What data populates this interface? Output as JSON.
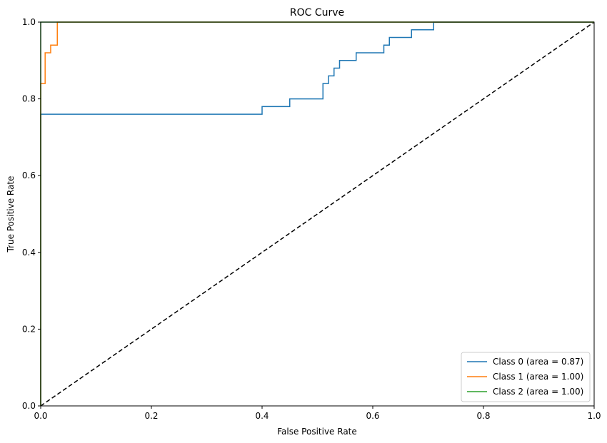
{
  "chart_data": {
    "type": "line",
    "title": "ROC Curve",
    "xlabel": "False Positive Rate",
    "ylabel": "True Positive Rate",
    "xlim": [
      0.0,
      1.0
    ],
    "ylim": [
      0.0,
      1.0
    ],
    "xticks": [
      "0.0",
      "0.2",
      "0.4",
      "0.6",
      "0.8",
      "1.0"
    ],
    "yticks": [
      "0.0",
      "0.2",
      "0.4",
      "0.6",
      "0.8",
      "1.0"
    ],
    "grid": false,
    "legend_position": "lower-right",
    "series": [
      {
        "name": "Class 0 (area = 0.87)",
        "color": "#1f77b4",
        "x": [
          0.0,
          0.0,
          0.4,
          0.4,
          0.45,
          0.45,
          0.51,
          0.51,
          0.52,
          0.52,
          0.53,
          0.53,
          0.54,
          0.54,
          0.57,
          0.57,
          0.62,
          0.62,
          0.63,
          0.63,
          0.67,
          0.67,
          0.71,
          0.71,
          1.0
        ],
        "y": [
          0.0,
          0.76,
          0.76,
          0.78,
          0.78,
          0.8,
          0.8,
          0.84,
          0.84,
          0.86,
          0.86,
          0.88,
          0.88,
          0.9,
          0.9,
          0.92,
          0.92,
          0.94,
          0.94,
          0.96,
          0.96,
          0.98,
          0.98,
          1.0,
          1.0
        ]
      },
      {
        "name": "Class 1 (area = 1.00)",
        "color": "#ff7f0e",
        "x": [
          0.0,
          0.0,
          0.008,
          0.008,
          0.018,
          0.018,
          0.03,
          0.03,
          1.0
        ],
        "y": [
          0.0,
          0.84,
          0.84,
          0.92,
          0.92,
          0.94,
          0.94,
          1.0,
          1.0
        ]
      },
      {
        "name": "Class 2 (area = 1.00)",
        "color": "#2ca02c",
        "x": [
          0.0,
          0.0,
          1.0
        ],
        "y": [
          0.0,
          1.0,
          1.0
        ]
      }
    ],
    "reference_line": {
      "style": "dashed",
      "color": "#000000",
      "x": [
        0.0,
        1.0
      ],
      "y": [
        0.0,
        1.0
      ]
    }
  }
}
